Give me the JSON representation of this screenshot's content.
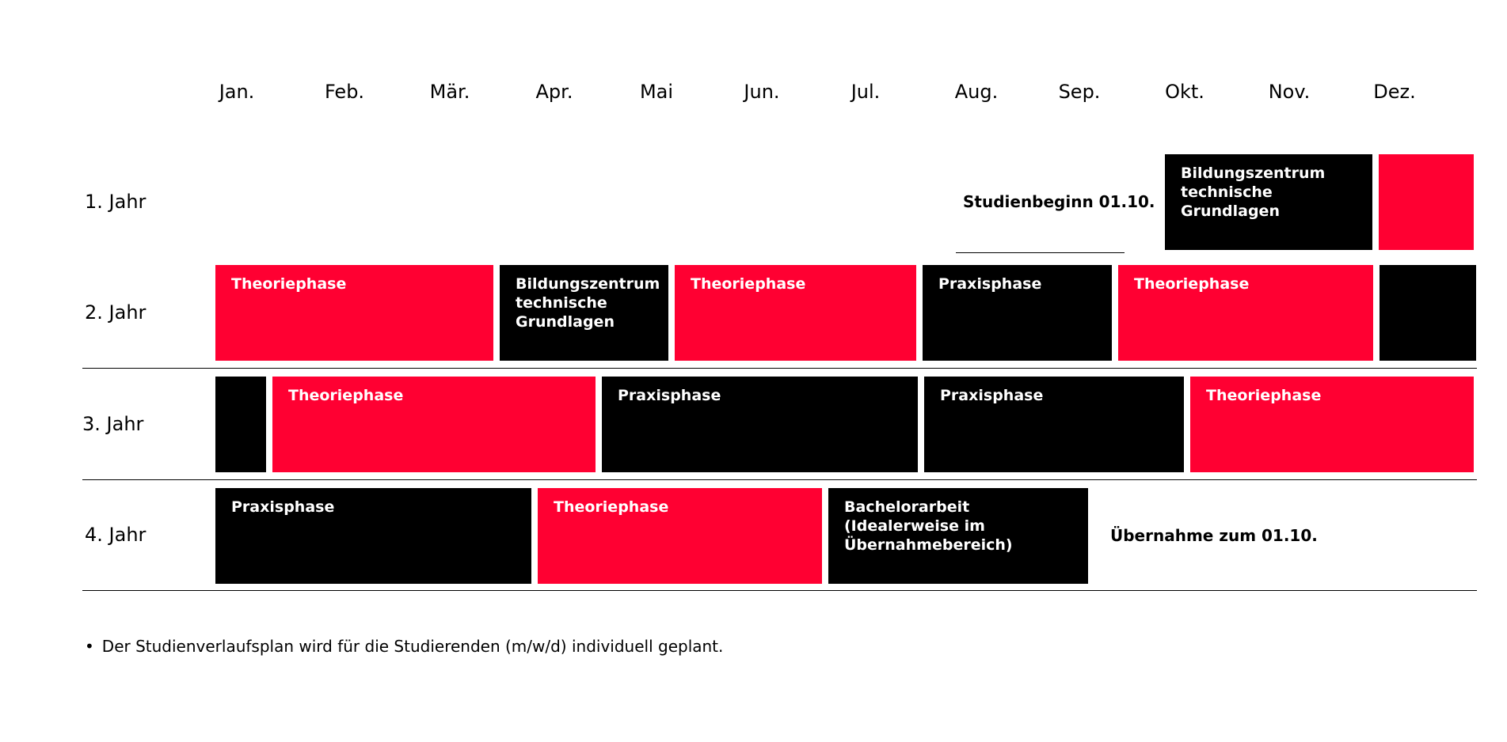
{
  "colors": {
    "theorie": "#ff0032",
    "praxis": "#000000"
  },
  "months": [
    "Jan.",
    "Feb.",
    "Mär.",
    "Apr.",
    "Mai",
    "Jun.",
    "Jul.",
    "Aug.",
    "Sep.",
    "Okt.",
    "Nov.",
    "Dez."
  ],
  "years": [
    {
      "label": "1. Jahr",
      "note": "Studienbeginn 01.10.",
      "blocks": [
        {
          "label": "Bildungszentrum technische Grundlagen",
          "color": "black"
        },
        {
          "label": "",
          "color": "red"
        }
      ]
    },
    {
      "label": "2. Jahr",
      "blocks": [
        {
          "label": "Theoriephase",
          "color": "red"
        },
        {
          "label": "Bildungszentrum technische Grundlagen",
          "color": "black"
        },
        {
          "label": "Theoriephase",
          "color": "red"
        },
        {
          "label": "Praxisphase",
          "color": "black"
        },
        {
          "label": "Theoriephase",
          "color": "red"
        },
        {
          "label": "",
          "color": "black"
        }
      ]
    },
    {
      "label": "3. Jahr",
      "blocks": [
        {
          "label": "",
          "color": "black"
        },
        {
          "label": "Theoriephase",
          "color": "red"
        },
        {
          "label": "Praxisphase",
          "color": "black"
        },
        {
          "label": "Praxisphase",
          "color": "black"
        },
        {
          "label": "Theoriephase",
          "color": "red"
        }
      ]
    },
    {
      "label": "4. Jahr",
      "note": "Übernahme zum  01.10.",
      "blocks": [
        {
          "label": "Praxisphase",
          "color": "black"
        },
        {
          "label": "Theoriephase",
          "color": "red"
        },
        {
          "label": "Bachelorarbeit (Idealerweise im Übernahmebereich)",
          "color": "black"
        }
      ]
    }
  ],
  "footnote": "Der Studienverlaufsplan wird für die Studierenden (m/w/d) individuell geplant."
}
